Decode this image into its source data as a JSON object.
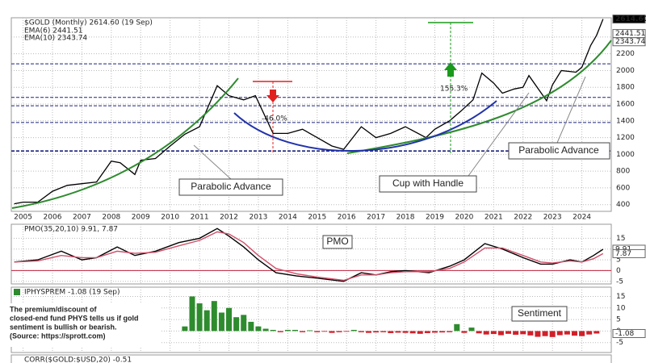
{
  "chart_data": [
    {
      "type": "line",
      "title": "$GOLD (Monthly) 2614.60 (19 Sep)",
      "indicators": [
        "EMA(6) 2441.51",
        "EMA(10) 2343.74"
      ],
      "indicator_colors": [
        "#2a8a2a",
        "#a040b0"
      ],
      "x": [
        2004.7,
        2005,
        2005.5,
        2006,
        2006.5,
        2007,
        2007.5,
        2008,
        2008.3,
        2008.8,
        2009,
        2009.5,
        2010,
        2010.5,
        2011,
        2011.6,
        2012,
        2012.5,
        2012.9,
        2013.3,
        2013.5,
        2014,
        2014.5,
        2015,
        2015.5,
        2015.9,
        2016.5,
        2017,
        2017.5,
        2018,
        2018.7,
        2019,
        2019.5,
        2019.9,
        2020.3,
        2020.6,
        2021,
        2021.3,
        2021.7,
        2022,
        2022.2,
        2022.8,
        2023,
        2023.3,
        2023.8,
        2024,
        2024.3,
        2024.5,
        2024.72
      ],
      "series": [
        {
          "color": "#000000",
          "values": [
            410,
            430,
            430,
            560,
            630,
            650,
            670,
            920,
            900,
            760,
            930,
            950,
            1100,
            1240,
            1330,
            1820,
            1700,
            1650,
            1700,
            1400,
            1250,
            1250,
            1300,
            1200,
            1100,
            1060,
            1330,
            1200,
            1250,
            1330,
            1200,
            1300,
            1400,
            1520,
            1650,
            1970,
            1850,
            1730,
            1780,
            1800,
            1940,
            1640,
            1830,
            2000,
            1980,
            2040,
            2300,
            2420,
            2614.6
          ]
        }
      ],
      "xlim": [
        2004.6,
        2025.0
      ],
      "xticks": [
        2005,
        2006,
        2007,
        2008,
        2009,
        2010,
        2011,
        2012,
        2013,
        2014,
        2015,
        2016,
        2017,
        2018,
        2019,
        2020,
        2021,
        2022,
        2023,
        2024
      ],
      "ylim": [
        320,
        2630
      ],
      "yticks": [
        400,
        600,
        800,
        1000,
        1200,
        1400,
        1600,
        1800,
        2000,
        2200,
        2400
      ],
      "levels": [
        1040,
        1380,
        1580,
        1680,
        2080
      ],
      "level_color": "#1a237e",
      "last_labels": [
        {
          "value": 2614.6,
          "label": "2614.60"
        },
        {
          "value": 2441.51,
          "label": "2441.51"
        },
        {
          "value": 2343.74,
          "label": "2343.74"
        }
      ],
      "annotations": [
        "Parabolic Advance",
        "Cup with Handle",
        "Parabolic Advance",
        "155.3%",
        "-46.0%"
      ],
      "grid": true
    },
    {
      "type": "line",
      "title": "PMO(35,20,10) 9.91, 7.87",
      "label": "PMO",
      "x": [
        2004.7,
        2005.5,
        2006.3,
        2007,
        2007.5,
        2008.2,
        2008.8,
        2009.5,
        2010.3,
        2011,
        2011.6,
        2012,
        2012.5,
        2013,
        2013.6,
        2014.3,
        2015,
        2015.9,
        2016.5,
        2017,
        2017.5,
        2018,
        2018.8,
        2019.5,
        2020,
        2020.7,
        2021.3,
        2022,
        2022.6,
        2023,
        2023.6,
        2024,
        2024.4,
        2024.72
      ],
      "series": [
        {
          "color": "#000000",
          "values": [
            4,
            5,
            9,
            5,
            6,
            11,
            7,
            9,
            13,
            15,
            19.5,
            16,
            11,
            5,
            -1,
            -2.5,
            -3.5,
            -5,
            -1,
            -2,
            -0.5,
            0,
            -1,
            2,
            5,
            12.5,
            10,
            6,
            3,
            3,
            5,
            4,
            7,
            9.91
          ]
        },
        {
          "color": "#d0506a",
          "values": [
            4,
            4.5,
            7,
            6,
            6,
            9,
            8,
            8.5,
            11.5,
            14,
            18,
            17,
            13,
            7,
            1,
            -1.5,
            -3,
            -4.5,
            -2,
            -2,
            -1,
            -0.5,
            -0.5,
            1,
            4,
            10.5,
            10.5,
            7,
            4,
            3.5,
            4.5,
            4,
            5.5,
            7.87
          ]
        }
      ],
      "xlim": [
        2004.6,
        2025.0
      ],
      "ylim": [
        -6.2,
        21.5
      ],
      "yticks": [
        15,
        10,
        5,
        0,
        -5
      ],
      "last_labels": [
        {
          "value": 9.91,
          "label": "9.91"
        },
        {
          "value": 7.87,
          "label": "7.87"
        }
      ],
      "zero_color": "#c0203a",
      "grid": true
    },
    {
      "type": "bar",
      "title": "IPHYSPREM -1.08 (19 Sep)",
      "label": "Sentiment",
      "note": [
        "The premium/discount of",
        "closed-end fund PHYS tells us if gold",
        "sentiment is bullish or bearish.",
        "(Source: https://sprott.com)"
      ],
      "x": [
        2010.5,
        2010.75,
        2011,
        2011.25,
        2011.5,
        2011.75,
        2012,
        2012.25,
        2012.5,
        2012.75,
        2013,
        2013.25,
        2013.5,
        2013.75,
        2014,
        2014.25,
        2014.5,
        2014.75,
        2015,
        2015.25,
        2015.5,
        2015.75,
        2016,
        2016.25,
        2016.5,
        2016.75,
        2017,
        2017.25,
        2017.5,
        2017.75,
        2018,
        2018.25,
        2018.5,
        2018.75,
        2019,
        2019.25,
        2019.5,
        2019.75,
        2020,
        2020.25,
        2020.5,
        2020.75,
        2021,
        2021.25,
        2021.5,
        2021.75,
        2022,
        2022.25,
        2022.5,
        2022.75,
        2023,
        2023.25,
        2023.5,
        2023.75,
        2024,
        2024.25,
        2024.5
      ],
      "values": [
        2,
        15,
        12,
        9,
        13,
        8,
        10,
        6,
        7,
        4,
        2,
        1,
        0.5,
        -0.5,
        0.5,
        0.5,
        -0.5,
        0.3,
        -0.5,
        -0.3,
        -0.8,
        -0.5,
        -0.3,
        0.5,
        -0.5,
        -0.8,
        -0.6,
        -0.5,
        -0.9,
        -0.7,
        -0.8,
        -1,
        -1.2,
        -0.9,
        -0.7,
        -0.6,
        -0.5,
        3,
        -0.8,
        1.5,
        -1,
        -1.5,
        -1.3,
        -1.8,
        -1.2,
        -1.6,
        -1.4,
        -1.9,
        -2.5,
        -2.2,
        -2.6,
        -1.8,
        -1.5,
        -2,
        -2.2,
        -1.5,
        -1.08
      ],
      "up_color": "#2e8b2e",
      "down_color": "#d0202a",
      "xlim": [
        2004.6,
        2025.0
      ],
      "ylim": [
        -9.3,
        19
      ],
      "yticks": [
        15,
        10,
        5,
        0,
        -5
      ],
      "last_labels": [
        {
          "value": -1.08,
          "label": "-1.08"
        }
      ],
      "grid": true
    },
    {
      "type": "header",
      "title": "CORR($GOLD:$USD,20) -0.51"
    }
  ]
}
